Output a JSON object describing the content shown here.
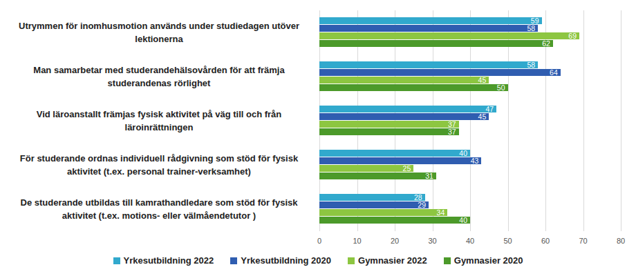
{
  "chart_data": {
    "type": "bar",
    "orientation": "horizontal",
    "data_labels": true,
    "grid": true,
    "legend": "bottom",
    "categories": [
      "Utrymmen för inomhusmotion används under studiedagen utöver lektionerna",
      "Man samarbetar med studerandehälsovården för att främja studerandenas rörlighet",
      "Vid läroanstallt främjas fysisk aktivitet på väg till och från läroinrättningen",
      "För studerande ordnas individuell rådgivning som stöd för fysisk aktivitet (t.ex. personal trainer-verksamhet)",
      "De studerande utbildas till kamrathandledare som stöd för fysisk aktivitet (t.ex. motions- eller välmåendetutor )"
    ],
    "series": [
      {
        "name": "Yrkesutbildning 2022",
        "color": "#31a9cd",
        "values": [
          59,
          58,
          47,
          40,
          28
        ]
      },
      {
        "name": "Yrkesutbildning 2020",
        "color": "#2f5db0",
        "values": [
          58,
          64,
          45,
          43,
          29
        ]
      },
      {
        "name": "Gymnasier 2022",
        "color": "#8dc641",
        "values": [
          69,
          45,
          37,
          25,
          34
        ]
      },
      {
        "name": "Gymnasier 2020",
        "color": "#4c9a2a",
        "values": [
          62,
          50,
          37,
          31,
          40
        ]
      }
    ],
    "xlim": [
      0,
      80
    ],
    "xticks": [
      0,
      10,
      20,
      30,
      40,
      50,
      60,
      70,
      80
    ]
  }
}
